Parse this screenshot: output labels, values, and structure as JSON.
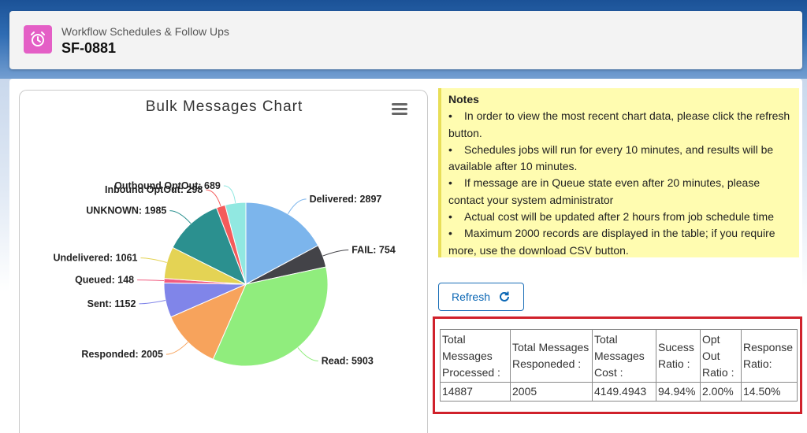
{
  "header": {
    "subtitle": "Workflow Schedules & Follow Ups",
    "title": "SF-0881",
    "icon": "alarm-clock-icon"
  },
  "chart_card": {
    "title": "Bulk Messages Chart",
    "menu_icon": "hamburger-menu-icon"
  },
  "chart_data": {
    "type": "pie",
    "title": "Bulk Messages Chart",
    "slices": [
      {
        "label": "Delivered",
        "value": 2897,
        "color": "#7cb5ec"
      },
      {
        "label": "FAIL",
        "value": 754,
        "color": "#434348"
      },
      {
        "label": "Read",
        "value": 5903,
        "color": "#90ed7d"
      },
      {
        "label": "Responded",
        "value": 2005,
        "color": "#f7a35c"
      },
      {
        "label": "Sent",
        "value": 1152,
        "color": "#8085e9"
      },
      {
        "label": "Queued",
        "value": 148,
        "color": "#f15c80"
      },
      {
        "label": "Undelivered",
        "value": 1061,
        "color": "#e4d354"
      },
      {
        "label": "UNKNOWN",
        "value": 1985,
        "color": "#2b908f"
      },
      {
        "label": "Inbound OptOut",
        "value": 298,
        "color": "#f45b5b"
      },
      {
        "label": "Outbound OptOut",
        "value": 689,
        "color": "#91e8e1"
      }
    ]
  },
  "notes": {
    "title": "Notes",
    "items": [
      "In order to view the most recent chart data, please click the refresh button.",
      "Schedules jobs will run for every 10 minutes, and results will be available after 10 minutes.",
      "If message are in Queue state even after 20 minutes, please contact your system administrator",
      "Actual cost will be updated after 2 hours from job schedule time",
      "Maximum 2000 records are displayed in the table; if you require more, use the download CSV button."
    ]
  },
  "refresh": {
    "label": "Refresh",
    "icon": "refresh-icon"
  },
  "stats": {
    "headers": [
      "Total Messages Processed :",
      "Total Messages Responeded :",
      "Total Messages Cost :",
      "Sucess Ratio :",
      "Opt Out Ratio :",
      "Response Ratio:"
    ],
    "values": [
      "14887",
      "2005",
      "4149.4943",
      "94.94%",
      "2.00%",
      "14.50%"
    ]
  }
}
